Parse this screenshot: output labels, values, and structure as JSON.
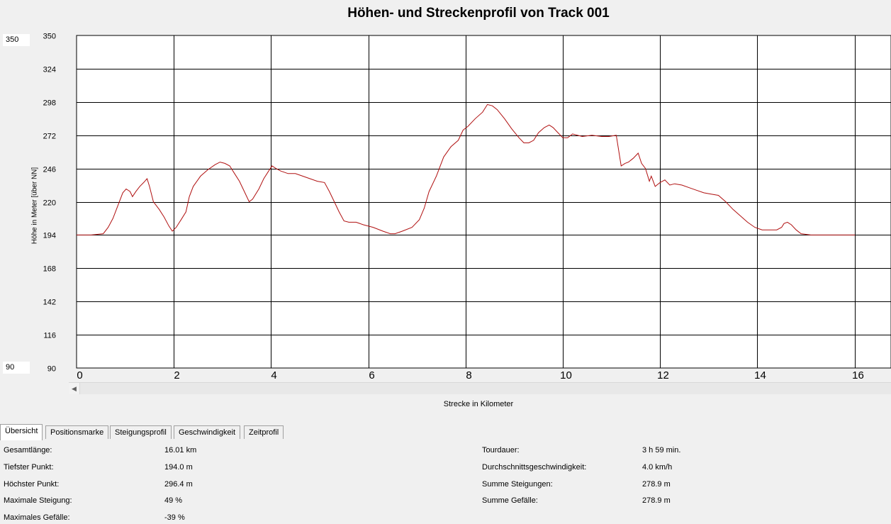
{
  "chart_data": {
    "type": "line",
    "title": "Höhen- und Streckenprofil von Track 001",
    "xlabel": "Strecke in Kilometer",
    "ylabel": "Höhe in Meter [über NN]",
    "xlim": [
      0,
      16.75
    ],
    "ylim": [
      90,
      350
    ],
    "xticks": [
      0,
      2,
      4,
      6,
      8,
      10,
      12,
      14,
      16
    ],
    "yticks": [
      90,
      116,
      142,
      168,
      194,
      220,
      246,
      272,
      298,
      324,
      350
    ],
    "grid": true,
    "line_color": "#b01010",
    "series": [
      {
        "x": [
          0,
          0.3,
          0.55,
          0.65,
          0.75,
          0.85,
          0.95,
          1.02,
          1.1,
          1.15,
          1.22,
          1.3,
          1.38,
          1.45,
          1.5,
          1.58,
          1.7,
          1.8,
          1.9,
          1.97,
          2.05,
          2.15,
          2.25,
          2.32,
          2.4,
          2.55,
          2.7,
          2.85,
          2.95,
          3.05,
          3.15,
          3.25,
          3.35,
          3.45,
          3.55,
          3.62,
          3.75,
          3.85,
          3.95,
          4.02,
          4.1,
          4.2,
          4.35,
          4.5,
          4.65,
          4.8,
          4.95,
          5.1,
          5.2,
          5.3,
          5.4,
          5.5,
          5.6,
          5.75,
          5.9,
          6.1,
          6.3,
          6.45,
          6.55,
          6.7,
          6.9,
          7.05,
          7.15,
          7.25,
          7.4,
          7.55,
          7.7,
          7.85,
          7.95,
          8.05,
          8.2,
          8.35,
          8.45,
          8.55,
          8.65,
          8.8,
          8.95,
          9.1,
          9.2,
          9.3,
          9.4,
          9.5,
          9.62,
          9.72,
          9.8,
          9.9,
          10.0,
          10.1,
          10.2,
          10.4,
          10.6,
          10.8,
          10.95,
          11.1,
          11.2,
          11.28,
          11.35,
          11.45,
          11.55,
          11.62,
          11.7,
          11.78,
          11.82,
          11.9,
          12.0,
          12.1,
          12.2,
          12.3,
          12.45,
          12.6,
          12.75,
          12.9,
          13.05,
          13.2,
          13.35,
          13.5,
          13.65,
          13.8,
          13.95,
          14.1,
          14.25,
          14.4,
          14.5,
          14.55,
          14.62,
          14.7,
          14.8,
          14.9,
          15.1,
          15.4,
          15.7,
          16.01
        ],
        "y": [
          194,
          194,
          195,
          200,
          207,
          217,
          227,
          230,
          228,
          224,
          228,
          232,
          235,
          238,
          232,
          220,
          214,
          208,
          201,
          197,
          200,
          206,
          212,
          224,
          232,
          240,
          245,
          249,
          251,
          250,
          248,
          242,
          236,
          228,
          220,
          222,
          230,
          238,
          244,
          248,
          246,
          244,
          242,
          242,
          240,
          238,
          236,
          235,
          228,
          220,
          212,
          205,
          204,
          204,
          202,
          200,
          197,
          195,
          195,
          197,
          200,
          206,
          215,
          228,
          240,
          255,
          263,
          268,
          276,
          279,
          285,
          290,
          296,
          295,
          292,
          285,
          277,
          270,
          266,
          266,
          268,
          274,
          278,
          280,
          278,
          274,
          270,
          270,
          273,
          271,
          272,
          271,
          271,
          272,
          248,
          250,
          251,
          254,
          258,
          250,
          246,
          236,
          240,
          232,
          235,
          237,
          233,
          234,
          233,
          231,
          229,
          227,
          226,
          225,
          220,
          214,
          209,
          204,
          200,
          198,
          198,
          198,
          200,
          203,
          204,
          202,
          198,
          195,
          194,
          194,
          194,
          194
        ]
      }
    ]
  },
  "y_range_inputs": {
    "max": "350",
    "min": "90"
  },
  "scrollbar": {
    "left_arrow_icon": "scroll-left-arrow-icon"
  },
  "tabs": [
    {
      "label": "Übersicht",
      "active": true
    },
    {
      "label": "Positionsmarke",
      "active": false
    },
    {
      "label": "Steigungsprofil",
      "active": false
    },
    {
      "label": "Geschwindigkeit",
      "active": false
    },
    {
      "label": "Zeitprofil",
      "active": false
    }
  ],
  "stats_left": [
    {
      "label": "Gesamtlänge:",
      "value": "16.01 km"
    },
    {
      "label": "Tiefster Punkt:",
      "value": "194.0 m"
    },
    {
      "label": "Höchster Punkt:",
      "value": "296.4 m"
    },
    {
      "label": "Maximale Steigung:",
      "value": "49 %"
    },
    {
      "label": "Maximales Gefälle:",
      "value": "-39 %"
    }
  ],
  "stats_right": [
    {
      "label": "Tourdauer:",
      "value": "3 h 59 min."
    },
    {
      "label": "Durchschnittsgeschwindigkeit:",
      "value": "4.0 km/h"
    },
    {
      "label": "Summe Steigungen:",
      "value": "278.9 m"
    },
    {
      "label": "Summe Gefälle:",
      "value": "278.9 m"
    }
  ]
}
